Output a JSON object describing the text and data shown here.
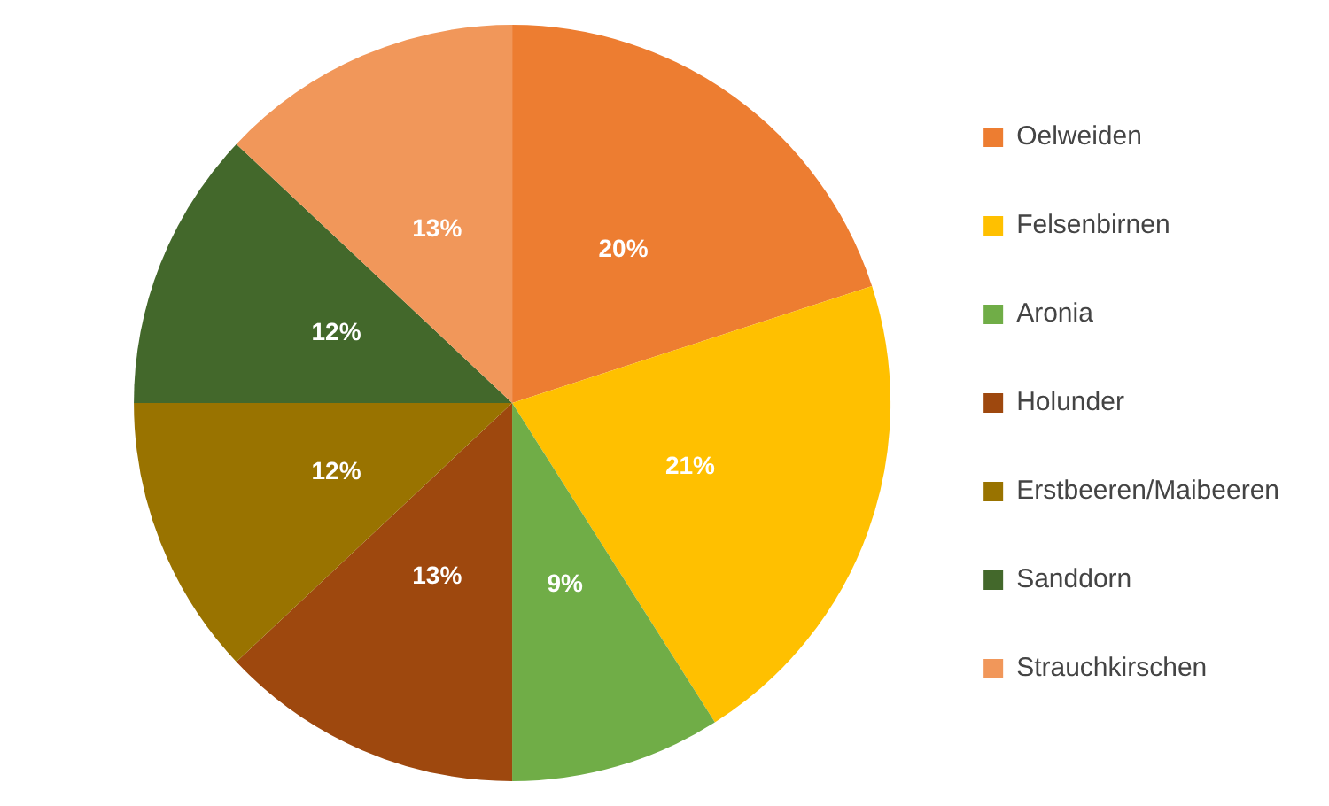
{
  "chart_data": {
    "type": "pie",
    "categories": [
      "Oelweiden",
      "Felsenbirnen",
      "Aronia",
      "Holunder",
      "Erstbeeren/Maibeeren",
      "Sanddorn",
      "Strauchkirschen"
    ],
    "values": [
      20,
      21,
      9,
      13,
      12,
      12,
      13
    ],
    "colors": [
      "#ed7d31",
      "#ffc000",
      "#70ad47",
      "#9e480e",
      "#997300",
      "#43682b",
      "#f1975a"
    ],
    "value_labels": [
      "20%",
      "21%",
      "9%",
      "13%",
      "12%",
      "12%",
      "13%"
    ],
    "legend": "right"
  }
}
